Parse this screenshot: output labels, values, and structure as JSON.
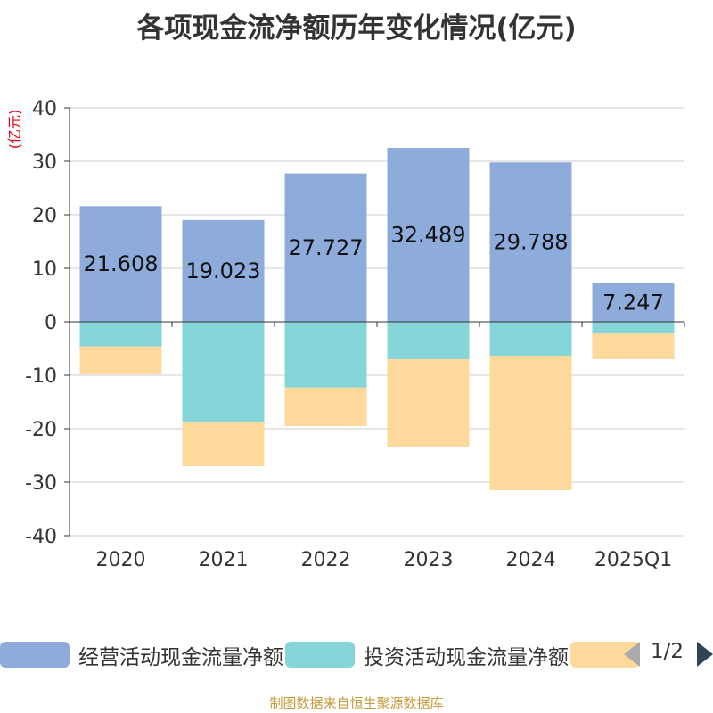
{
  "chart_data": {
    "type": "bar",
    "stacked": true,
    "title": "各项现金流净额历年变化情况(亿元)",
    "ylabel": "(亿元)",
    "ylim": [
      -40,
      40
    ],
    "yticks": [
      40,
      30,
      20,
      10,
      0,
      -10,
      -20,
      -30,
      -40
    ],
    "categories": [
      "2020",
      "2021",
      "2022",
      "2023",
      "2024",
      "2025Q1"
    ],
    "series": [
      {
        "name": "经营活动现金流量净额",
        "color": "#8eacdb",
        "values": [
          21.608,
          19.023,
          27.727,
          32.489,
          29.788,
          7.247
        ],
        "show_labels": true
      },
      {
        "name": "投资活动现金流量净额",
        "color": "#86d5d8",
        "values": [
          -4.6,
          -18.7,
          -12.3,
          -7.0,
          -6.5,
          -2.2
        ],
        "show_labels": false
      },
      {
        "name": "",
        "color": "#fed99b",
        "values": [
          -5.2,
          -8.3,
          -7.2,
          -16.5,
          -25.0,
          -4.8
        ],
        "show_labels": false
      }
    ],
    "grid": true,
    "legend_position": "bottom"
  },
  "legend": {
    "page": "1/2"
  },
  "footer": {
    "source": "制图数据来自恒生聚源数据库"
  }
}
